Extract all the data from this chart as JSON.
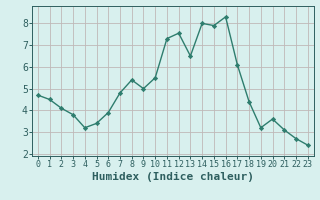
{
  "x": [
    0,
    1,
    2,
    3,
    4,
    5,
    6,
    7,
    8,
    9,
    10,
    11,
    12,
    13,
    14,
    15,
    16,
    17,
    18,
    19,
    20,
    21,
    22,
    23
  ],
  "y": [
    4.7,
    4.5,
    4.1,
    3.8,
    3.2,
    3.4,
    3.9,
    4.8,
    5.4,
    5.0,
    5.5,
    7.3,
    7.55,
    6.5,
    8.0,
    7.9,
    8.3,
    6.1,
    4.4,
    3.2,
    3.6,
    3.1,
    2.7,
    2.4
  ],
  "xlabel": "Humidex (Indice chaleur)",
  "xlim": [
    -0.5,
    23.5
  ],
  "ylim": [
    1.9,
    8.8
  ],
  "yticks": [
    2,
    3,
    4,
    5,
    6,
    7,
    8
  ],
  "xticks": [
    0,
    1,
    2,
    3,
    4,
    5,
    6,
    7,
    8,
    9,
    10,
    11,
    12,
    13,
    14,
    15,
    16,
    17,
    18,
    19,
    20,
    21,
    22,
    23
  ],
  "line_color": "#2e7d6e",
  "marker": "D",
  "marker_size": 2.2,
  "bg_color": "#d8f0ee",
  "grid_color": "#c0b8b8",
  "tick_color": "#2e5f5f",
  "label_fontsize": 7,
  "tick_fontsize": 6,
  "font_family": "monospace"
}
